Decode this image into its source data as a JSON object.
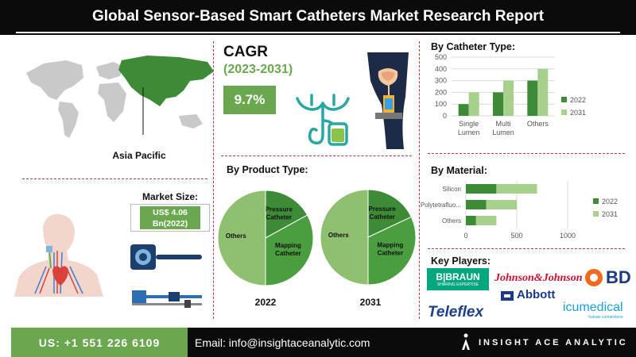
{
  "header": {
    "title": "Global Sensor-Based Smart Catheters Market Research Report"
  },
  "region": {
    "label": "Asia Pacific"
  },
  "cagr": {
    "title": "CAGR",
    "period": "(2023-2031)",
    "value": "9.7%"
  },
  "market_size": {
    "title": "Market Size:",
    "line1": "US$ 4.06",
    "line2": "Bn(2022)"
  },
  "key_players": {
    "title": "Key Players:",
    "logos": [
      "B|BRAUN",
      "SHARING EXPERTISE",
      "Johnson&Johnson",
      "BD",
      "Abbott",
      "Teleflex",
      "icumedical",
      "human connections"
    ]
  },
  "footer": {
    "phone": "US: +1 551 226 6109",
    "email": "Email: info@insightaceanalytic.com",
    "brand": "INSIGHT ACE ANALYTIC"
  },
  "colors": {
    "accent_green": "#6aa84f",
    "dark_green": "#3d8b37",
    "light_green": "#a8d08d",
    "separator": "#b33a3a"
  },
  "chart_data": [
    {
      "type": "bar",
      "title": "By Catheter Type:",
      "categories": [
        "Single Lumen",
        "Multi Lumen",
        "Others"
      ],
      "series": [
        {
          "name": "2022",
          "values": [
            100,
            200,
            300
          ]
        },
        {
          "name": "2031",
          "values": [
            200,
            300,
            400
          ]
        }
      ],
      "ylim": [
        0,
        500
      ],
      "yticks": [
        0,
        100,
        200,
        300,
        400,
        500
      ],
      "grid": true,
      "legend": "right"
    },
    {
      "type": "bar",
      "orientation": "horizontal",
      "stacked": true,
      "title": "By Material:",
      "categories": [
        "Silicon",
        "Polytetrafluo...",
        "Others"
      ],
      "series": [
        {
          "name": "2022",
          "values": [
            300,
            200,
            100
          ]
        },
        {
          "name": "2031",
          "values": [
            400,
            300,
            200
          ]
        }
      ],
      "xlim": [
        0,
        1000
      ],
      "xticks": [
        0,
        500,
        1000
      ],
      "grid": true,
      "legend": "right"
    },
    {
      "type": "pie",
      "title": "By Product Type:",
      "label": "2022",
      "slices": [
        {
          "name": "Pressure Catheter",
          "value": 17
        },
        {
          "name": "Mapping Catheter",
          "value": 33
        },
        {
          "name": "Others",
          "value": 50
        }
      ]
    },
    {
      "type": "pie",
      "label": "2031",
      "slices": [
        {
          "name": "Pressure Catheter",
          "value": 18
        },
        {
          "name": "Mapping Catheter",
          "value": 32
        },
        {
          "name": "Others",
          "value": 50
        }
      ]
    }
  ]
}
